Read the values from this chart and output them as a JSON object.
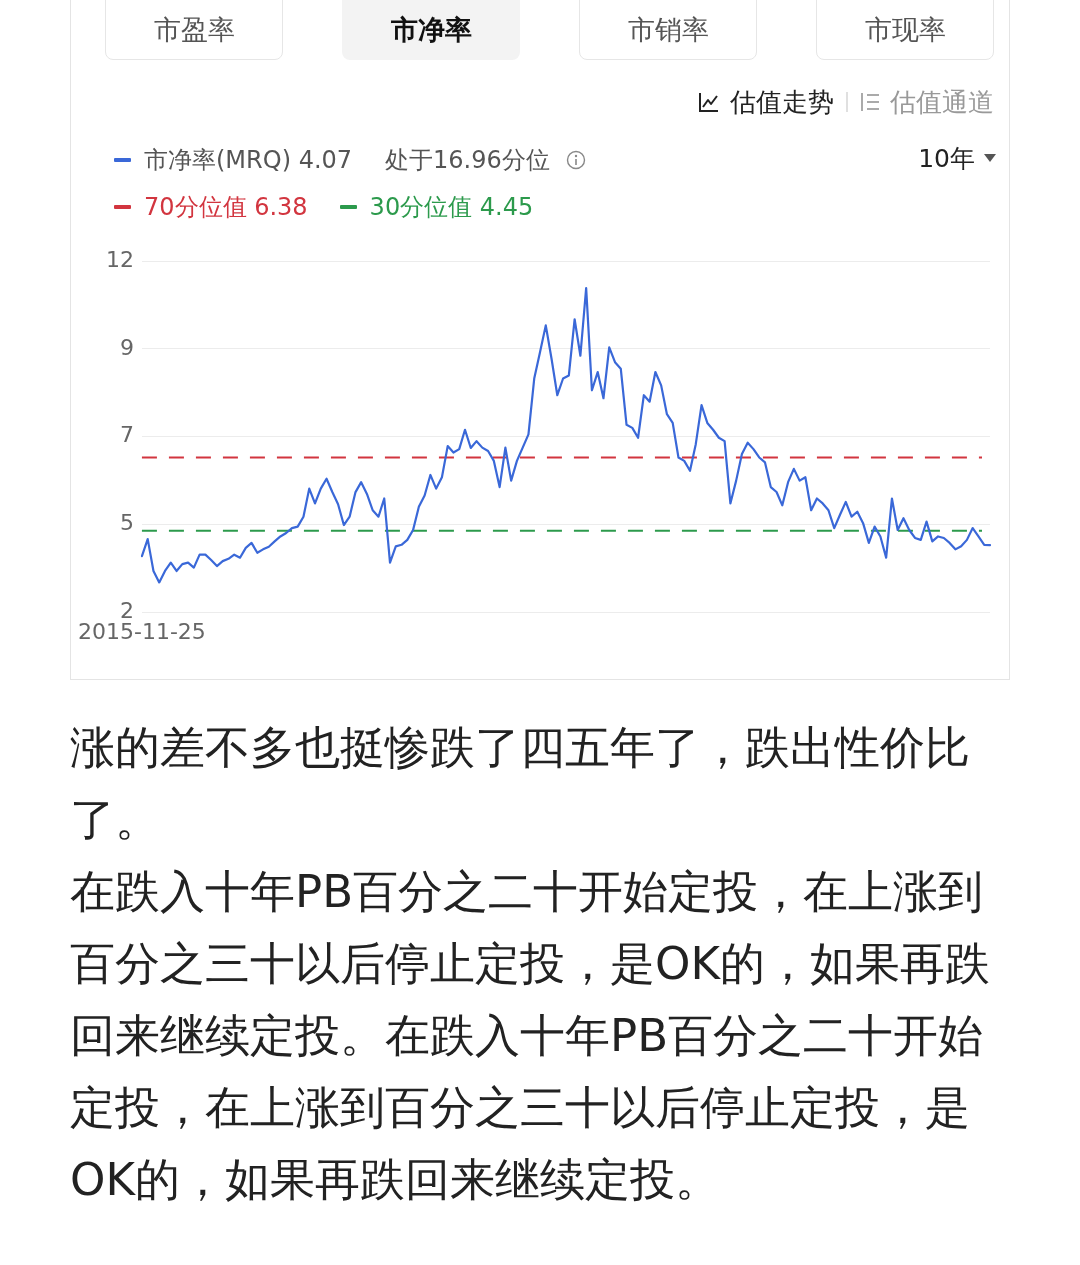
{
  "chart_data": {
    "type": "line",
    "categories": [
      "2015-11-25",
      null,
      null,
      null,
      null,
      null,
      null,
      null,
      null,
      null,
      null,
      null,
      null,
      null,
      null,
      null,
      null,
      null,
      null,
      null,
      null,
      null,
      null,
      null,
      null,
      null,
      null,
      null,
      null,
      null,
      null,
      null,
      null,
      null,
      null,
      null,
      null,
      null,
      null,
      null,
      null,
      null,
      null,
      null,
      null,
      null,
      null,
      null,
      null,
      null,
      null,
      null,
      null,
      null,
      null,
      null,
      null,
      null,
      null,
      null,
      null,
      null,
      null,
      null,
      null,
      null,
      null,
      null,
      null,
      null,
      null,
      null,
      null,
      null,
      null,
      null,
      null,
      null,
      null,
      null,
      null,
      null,
      null,
      null,
      null,
      null,
      null,
      null,
      null,
      null,
      null,
      null,
      null,
      null,
      null,
      null,
      null,
      null,
      null,
      null,
      null,
      null,
      null,
      null,
      null,
      null,
      null,
      null,
      null,
      null,
      null,
      null,
      null,
      null,
      null,
      null,
      null,
      null,
      null,
      null,
      null,
      null,
      null,
      null,
      null,
      null,
      null,
      null,
      null,
      null,
      null,
      null,
      null,
      null,
      null,
      null,
      null,
      null,
      null,
      null,
      null,
      null,
      null,
      null,
      null,
      null,
      null,
      null
    ],
    "series": [
      {
        "name": "市净率(MRQ) 4.07",
        "color": "#3a68d8",
        "values": [
          3.78,
          4.23,
          3.39,
          3.09,
          3.39,
          3.61,
          3.39,
          3.57,
          3.61,
          3.48,
          3.82,
          3.82,
          3.68,
          3.52,
          3.65,
          3.71,
          3.82,
          3.74,
          4.0,
          4.13,
          3.87,
          3.96,
          4.03,
          4.17,
          4.3,
          4.39,
          4.52,
          4.56,
          4.82,
          5.56,
          5.17,
          5.56,
          5.82,
          5.47,
          5.15,
          4.6,
          4.82,
          5.46,
          5.73,
          5.42,
          4.99,
          4.82,
          5.3,
          3.61,
          4.04,
          4.08,
          4.21,
          4.47,
          5.08,
          5.38,
          5.92,
          5.56,
          5.86,
          6.68,
          6.51,
          6.6,
          7.11,
          6.63,
          6.81,
          6.64,
          6.55,
          6.29,
          5.6,
          6.64,
          5.77,
          6.29,
          6.64,
          6.99,
          8.46,
          9.15,
          9.86,
          8.98,
          8.02,
          8.46,
          8.54,
          10.02,
          9.06,
          10.84,
          8.15,
          8.63,
          7.94,
          9.28,
          8.89,
          8.72,
          7.24,
          7.16,
          6.9,
          8.02,
          7.85,
          8.63,
          8.28,
          7.52,
          7.29,
          6.38,
          6.29,
          6.03,
          6.73,
          7.76,
          7.29,
          7.11,
          6.9,
          6.81,
          5.17,
          5.77,
          6.47,
          6.77,
          6.6,
          6.38,
          6.25,
          5.6,
          5.47,
          5.12,
          5.73,
          6.08,
          5.77,
          5.86,
          4.99,
          5.3,
          5.17,
          4.99,
          4.52,
          4.87,
          5.21,
          4.82,
          4.95,
          4.65,
          4.13,
          4.56,
          4.3,
          3.74,
          5.3,
          4.47,
          4.78,
          4.47,
          4.26,
          4.21,
          4.69,
          4.17,
          4.3,
          4.26,
          4.13,
          3.96,
          4.04,
          4.21,
          4.52,
          4.3,
          4.08,
          4.07
        ]
      }
    ],
    "ylim": [
      2.31,
      11.55
    ],
    "yticks": [
      {
        "value": 2.31,
        "label": "2"
      },
      {
        "value": 4.62,
        "label": "5"
      },
      {
        "value": 6.93,
        "label": "7"
      },
      {
        "value": 9.24,
        "label": "9"
      },
      {
        "value": 11.55,
        "label": "12"
      }
    ],
    "ref_lines": [
      {
        "axis": "y",
        "value": 6.38,
        "label": "70分位值 6.38",
        "color": "#d2353f",
        "line_style": "dashed"
      },
      {
        "axis": "y",
        "value": 4.45,
        "label": "30分位值 4.45",
        "color": "#2c9a4c",
        "line_style": "dashed"
      }
    ],
    "grid": "y",
    "legend": "top left",
    "annotations": [
      "市盈率",
      "市净率",
      "市销率",
      "市现率",
      "估值走势",
      "估值通道",
      "10年",
      "处于16.96分位",
      "涨的差不多也挺惨跌了四五年了，跌出性价比了。",
      "在跌入十年PB百分之二十开始定投，在上涨到百分之三十以后停止定投，是OK的，如果再跌回来继续定投。在跌入十年PB百分之二十开始定投，在上涨到百分之三十以后停止定投，是OK的，如果再跌回来继续定投。"
    ]
  }
}
